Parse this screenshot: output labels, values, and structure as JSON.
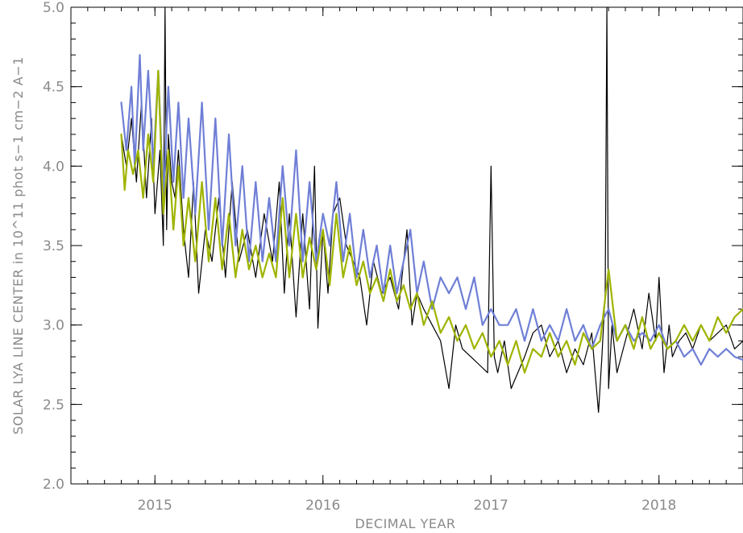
{
  "chart_data": {
    "type": "line",
    "xlabel": "DECIMAL YEAR",
    "ylabel": "SOLAR LYA LINE CENTER in 10^11 phot s−1 cm−2 A−1",
    "xlim": [
      2014.5,
      2018.5
    ],
    "ylim": [
      2.0,
      5.0
    ],
    "x_major_ticks": [
      2015,
      2016,
      2017,
      2018
    ],
    "x_tick_labels": [
      "2015",
      "2016",
      "2017",
      "2018"
    ],
    "x_minor_step": 0.1,
    "y_major_ticks": [
      2.0,
      2.5,
      3.0,
      3.5,
      4.0,
      4.5,
      5.0
    ],
    "y_tick_labels": [
      "2.0",
      "2.5",
      "3.0",
      "3.5",
      "4.0",
      "4.5",
      "5.0"
    ],
    "y_minor_step": 0.1,
    "grid": false,
    "colors": {
      "observed": "#000000",
      "model_blue": "#6f7fd6",
      "model_green": "#9fb400"
    },
    "series": [
      {
        "color": "#000000",
        "x": [
          2014.8,
          2014.83,
          2014.86,
          2014.89,
          2014.92,
          2014.95,
          2014.98,
          2015.0,
          2015.03,
          2015.05,
          2015.06,
          2015.07,
          2015.08,
          2015.1,
          2015.12,
          2015.14,
          2015.17,
          2015.2,
          2015.23,
          2015.26,
          2015.3,
          2015.34,
          2015.38,
          2015.42,
          2015.46,
          2015.5,
          2015.55,
          2015.6,
          2015.65,
          2015.7,
          2015.74,
          2015.77,
          2015.8,
          2015.84,
          2015.88,
          2015.92,
          2015.95,
          2015.97,
          2016.0,
          2016.03,
          2016.06,
          2016.1,
          2016.14,
          2016.18,
          2016.22,
          2016.26,
          2016.3,
          2016.35,
          2016.4,
          2016.45,
          2016.5,
          2016.53,
          2016.56,
          2016.6,
          2016.65,
          2016.7,
          2016.75,
          2016.79,
          2016.83,
          2016.88,
          2016.93,
          2016.98,
          2017.0,
          2017.02,
          2017.04,
          2017.08,
          2017.12,
          2017.16,
          2017.2,
          2017.25,
          2017.3,
          2017.35,
          2017.4,
          2017.45,
          2017.5,
          2017.55,
          2017.6,
          2017.64,
          2017.66,
          2017.68,
          2017.69,
          2017.7,
          2017.72,
          2017.75,
          2017.8,
          2017.85,
          2017.9,
          2017.94,
          2017.98,
          2018.0,
          2018.03,
          2018.06,
          2018.08,
          2018.12,
          2018.16,
          2018.2,
          2018.25,
          2018.3,
          2018.35,
          2018.4,
          2018.45,
          2018.5
        ],
        "values": [
          4.2,
          4.0,
          4.3,
          3.9,
          4.4,
          3.8,
          4.3,
          3.7,
          4.1,
          3.5,
          5.0,
          3.6,
          4.2,
          3.9,
          3.8,
          4.1,
          3.6,
          3.3,
          3.9,
          3.2,
          3.6,
          3.4,
          3.8,
          3.3,
          3.9,
          3.4,
          3.6,
          3.3,
          3.7,
          3.4,
          3.9,
          3.2,
          3.7,
          3.05,
          3.7,
          3.1,
          4.0,
          2.98,
          3.6,
          3.2,
          3.7,
          3.8,
          3.5,
          3.4,
          3.3,
          3.0,
          3.4,
          3.2,
          3.3,
          3.1,
          3.6,
          3.0,
          3.2,
          3.1,
          3.0,
          2.9,
          2.6,
          3.0,
          2.85,
          2.8,
          2.75,
          2.7,
          4.0,
          2.8,
          2.7,
          2.9,
          2.6,
          2.7,
          2.8,
          2.95,
          3.0,
          2.8,
          2.9,
          2.7,
          2.85,
          2.75,
          2.95,
          2.45,
          2.8,
          3.2,
          5.0,
          2.6,
          3.0,
          2.7,
          2.9,
          3.1,
          2.85,
          3.2,
          2.9,
          3.3,
          2.7,
          3.0,
          2.8,
          2.9,
          2.95,
          2.85,
          3.0,
          2.9,
          2.95,
          3.0,
          2.85,
          2.9
        ]
      },
      {
        "color": "#6f7fd6",
        "x": [
          2014.8,
          2014.83,
          2014.86,
          2014.88,
          2014.91,
          2014.93,
          2014.96,
          2014.99,
          2015.02,
          2015.05,
          2015.08,
          2015.11,
          2015.14,
          2015.17,
          2015.2,
          2015.24,
          2015.28,
          2015.32,
          2015.36,
          2015.4,
          2015.44,
          2015.48,
          2015.52,
          2015.56,
          2015.6,
          2015.64,
          2015.68,
          2015.72,
          2015.76,
          2015.8,
          2015.84,
          2015.88,
          2015.92,
          2015.96,
          2016.0,
          2016.04,
          2016.08,
          2016.12,
          2016.16,
          2016.2,
          2016.24,
          2016.28,
          2016.32,
          2016.36,
          2016.4,
          2016.44,
          2016.48,
          2016.52,
          2016.56,
          2016.6,
          2016.65,
          2016.7,
          2016.75,
          2016.8,
          2016.85,
          2016.9,
          2016.95,
          2017.0,
          2017.05,
          2017.1,
          2017.15,
          2017.2,
          2017.25,
          2017.3,
          2017.35,
          2017.4,
          2017.45,
          2017.5,
          2017.55,
          2017.6,
          2017.65,
          2017.7,
          2017.75,
          2017.8,
          2017.85,
          2017.9,
          2017.95,
          2018.0,
          2018.05,
          2018.1,
          2018.15,
          2018.2,
          2018.25,
          2018.3,
          2018.35,
          2018.4,
          2018.45,
          2018.5
        ],
        "values": [
          4.4,
          4.1,
          4.5,
          4.0,
          4.7,
          4.1,
          4.6,
          4.0,
          4.6,
          3.8,
          4.5,
          3.9,
          4.4,
          3.8,
          4.3,
          3.7,
          4.4,
          3.6,
          4.3,
          3.5,
          4.2,
          3.5,
          4.0,
          3.4,
          3.9,
          3.4,
          3.8,
          3.4,
          4.0,
          3.5,
          4.1,
          3.4,
          3.9,
          3.4,
          3.7,
          3.5,
          3.9,
          3.4,
          3.7,
          3.3,
          3.6,
          3.3,
          3.5,
          3.2,
          3.5,
          3.2,
          3.4,
          3.6,
          3.2,
          3.4,
          3.1,
          3.3,
          3.2,
          3.3,
          3.1,
          3.3,
          3.0,
          3.1,
          3.0,
          3.0,
          3.1,
          2.9,
          3.1,
          2.9,
          3.0,
          2.9,
          3.1,
          2.9,
          3.0,
          2.85,
          3.0,
          3.1,
          2.9,
          3.0,
          2.9,
          2.95,
          2.9,
          3.0,
          2.85,
          2.9,
          2.8,
          2.85,
          2.75,
          2.85,
          2.8,
          2.85,
          2.8,
          2.78
        ]
      },
      {
        "color": "#9fb400",
        "x": [
          2014.8,
          2014.82,
          2014.84,
          2014.87,
          2014.9,
          2014.93,
          2014.96,
          2014.99,
          2015.02,
          2015.05,
          2015.08,
          2015.11,
          2015.14,
          2015.17,
          2015.2,
          2015.24,
          2015.28,
          2015.32,
          2015.36,
          2015.4,
          2015.44,
          2015.48,
          2015.52,
          2015.56,
          2015.6,
          2015.64,
          2015.68,
          2015.72,
          2015.76,
          2015.8,
          2015.84,
          2015.88,
          2015.92,
          2015.96,
          2016.0,
          2016.04,
          2016.08,
          2016.12,
          2016.16,
          2016.2,
          2016.24,
          2016.28,
          2016.32,
          2016.36,
          2016.4,
          2016.44,
          2016.48,
          2016.52,
          2016.56,
          2016.6,
          2016.65,
          2016.7,
          2016.75,
          2016.8,
          2016.85,
          2016.9,
          2016.95,
          2017.0,
          2017.05,
          2017.1,
          2017.15,
          2017.2,
          2017.25,
          2017.3,
          2017.35,
          2017.4,
          2017.45,
          2017.5,
          2017.55,
          2017.6,
          2017.65,
          2017.7,
          2017.75,
          2017.8,
          2017.85,
          2017.9,
          2017.95,
          2018.0,
          2018.05,
          2018.1,
          2018.15,
          2018.2,
          2018.25,
          2018.3,
          2018.35,
          2018.4,
          2018.45,
          2018.5
        ],
        "values": [
          4.2,
          3.85,
          4.1,
          3.95,
          4.1,
          3.8,
          4.2,
          3.9,
          4.6,
          3.7,
          4.1,
          3.6,
          4.0,
          3.5,
          3.8,
          3.4,
          3.9,
          3.4,
          3.8,
          3.35,
          3.7,
          3.3,
          3.6,
          3.35,
          3.5,
          3.3,
          3.45,
          3.3,
          3.8,
          3.3,
          3.7,
          3.3,
          3.55,
          3.35,
          3.6,
          3.25,
          3.7,
          3.3,
          3.5,
          3.25,
          3.4,
          3.2,
          3.3,
          3.15,
          3.35,
          3.15,
          3.25,
          3.1,
          3.2,
          3.0,
          3.15,
          2.95,
          3.05,
          2.9,
          3.0,
          2.85,
          2.95,
          2.8,
          2.9,
          2.75,
          2.9,
          2.7,
          2.85,
          2.8,
          2.95,
          2.8,
          2.9,
          2.75,
          2.95,
          2.85,
          2.9,
          3.35,
          2.9,
          3.0,
          2.85,
          3.05,
          2.85,
          2.95,
          2.85,
          2.9,
          3.0,
          2.9,
          3.0,
          2.9,
          3.05,
          2.95,
          3.05,
          3.1
        ]
      }
    ]
  }
}
